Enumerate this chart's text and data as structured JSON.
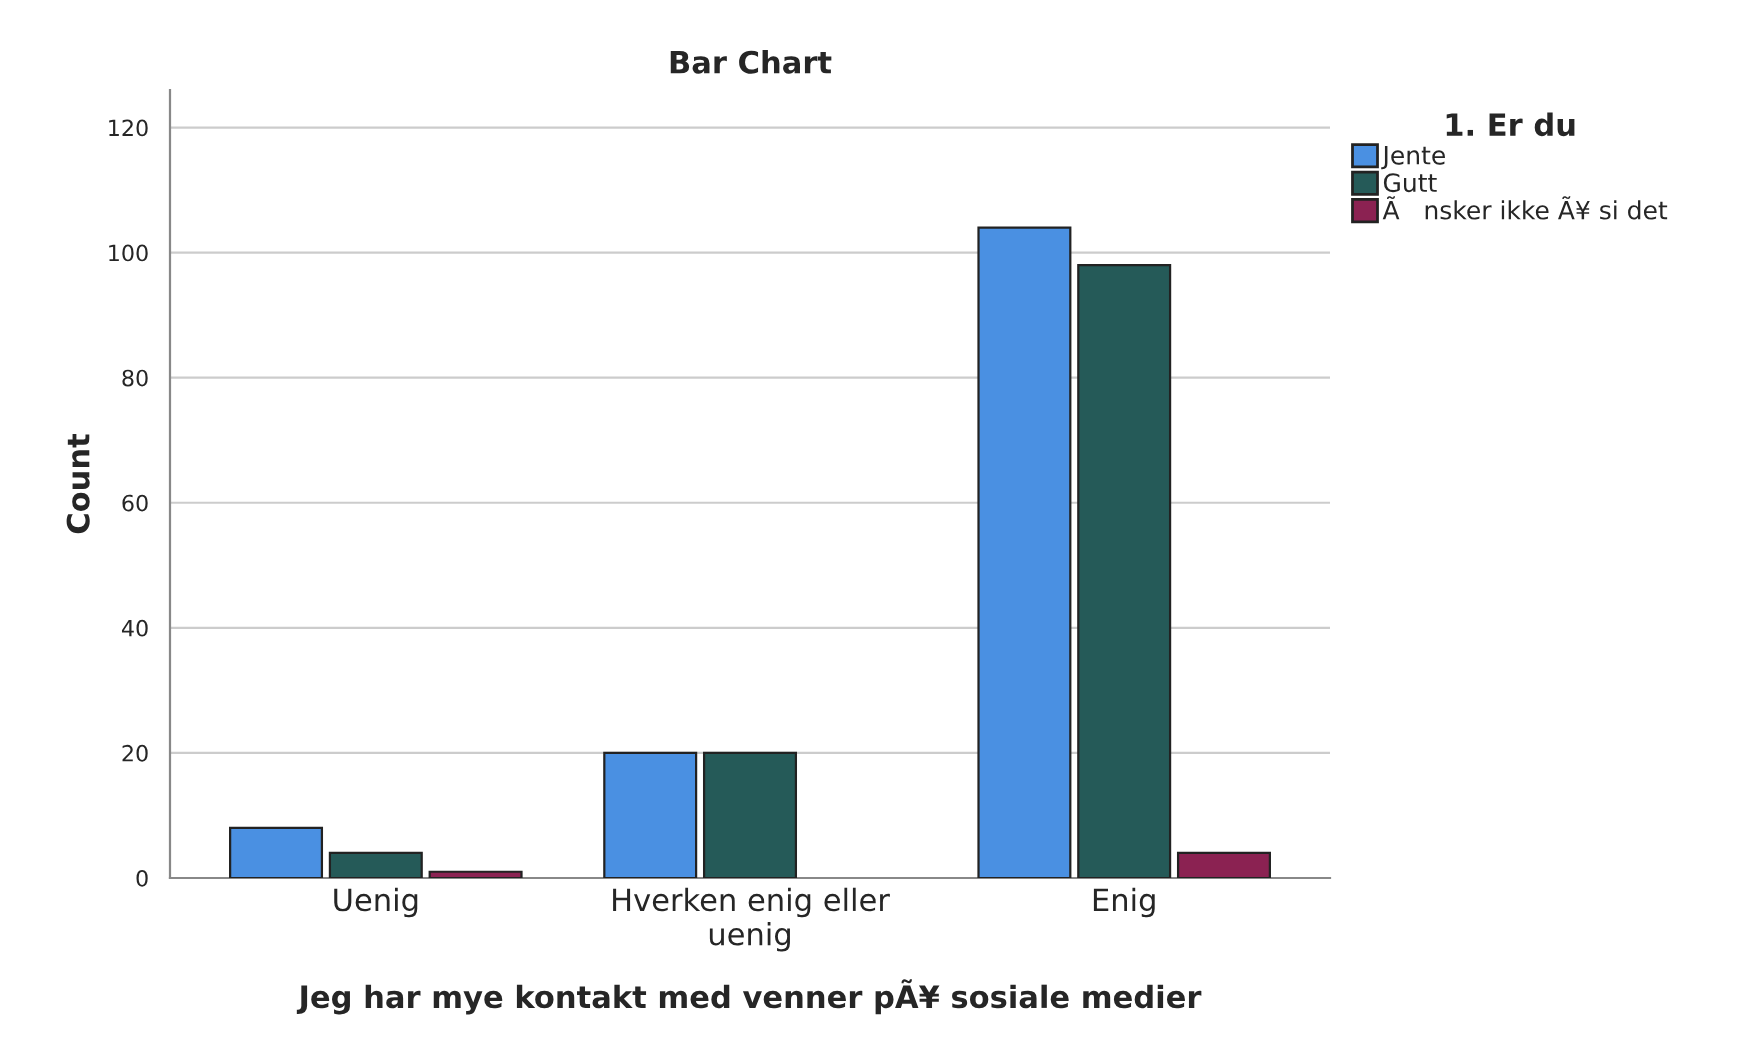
{
  "chart_data": {
    "type": "bar",
    "title": "Bar Chart",
    "xlabel": "Jeg har mye kontakt med venner pÃ¥ sosiale medier",
    "ylabel": "Count",
    "legend_title": "1. Er du",
    "categories": [
      "Uenig",
      "Hverken enig eller\nuenig",
      "Enig"
    ],
    "series": [
      {
        "name": "Jente",
        "color": "#4a90e2",
        "values": [
          8,
          20,
          104
        ]
      },
      {
        "name": "Gutt",
        "color": "#255a58",
        "values": [
          4,
          20,
          98
        ]
      },
      {
        "name": "Ã   nsker ikke Ã¥ si det",
        "color": "#8b2252",
        "values": [
          1,
          null,
          4
        ]
      }
    ],
    "ylim": [
      0,
      126
    ],
    "yticks": [
      0,
      20,
      40,
      60,
      80,
      100,
      120
    ],
    "grid": "y",
    "legend": "top right"
  }
}
